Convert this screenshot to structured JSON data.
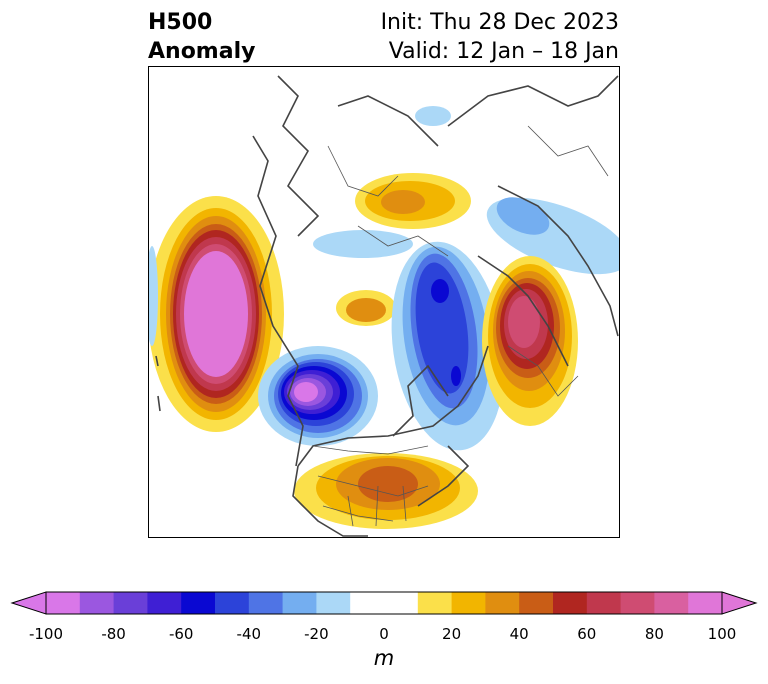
{
  "header": {
    "left_line1": "H500",
    "left_line2": "Anomaly",
    "right_line1": "Init: Thu 28 Dec 2023",
    "right_line2": "Valid: 12 Jan – 18 Jan"
  },
  "colorbar": {
    "ticks": [
      "-100",
      "-80",
      "-60",
      "-40",
      "-20",
      "0",
      "20",
      "40",
      "60",
      "80",
      "100"
    ],
    "unit": "m",
    "colors": [
      "#d977e8",
      "#9b57e0",
      "#6a3fd8",
      "#3f1fd4",
      "#0a08d2",
      "#2c43d9",
      "#4f74e5",
      "#74aef0",
      "#abd8f7",
      "#ffffff",
      "#ffffff",
      "#fbe04a",
      "#f2b500",
      "#e08e10",
      "#c95d16",
      "#b02620",
      "#c0384d",
      "#cf4c72",
      "#d960a0",
      "#e076d8"
    ]
  }
}
